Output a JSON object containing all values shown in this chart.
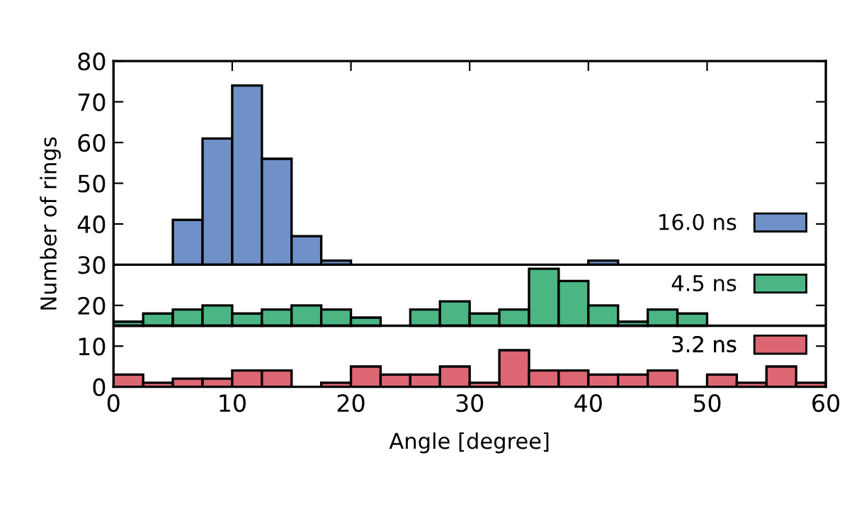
{
  "chart_data": {
    "type": "histogram",
    "xlabel": "Angle [degree]",
    "ylabel": "Number of rings",
    "bins": [
      0,
      2.5,
      5,
      7.5,
      10,
      12.5,
      15,
      17.5,
      20,
      22.5,
      25,
      27.5,
      30,
      32.5,
      35,
      37.5,
      40,
      42.5,
      45,
      47.5,
      50,
      52.5,
      55,
      57.5,
      60
    ],
    "series": [
      {
        "name": "16.0 ns",
        "color": "#6f91c7",
        "base": [
          null,
          null,
          30,
          30,
          30,
          30,
          30,
          30,
          null,
          null,
          null,
          null,
          null,
          null,
          null,
          null,
          30,
          null,
          null,
          null,
          null,
          null,
          null,
          null
        ],
        "values": [
          null,
          null,
          11,
          31,
          44,
          26,
          7,
          1,
          null,
          null,
          null,
          null,
          null,
          null,
          null,
          null,
          1,
          null,
          null,
          null,
          null,
          null,
          null,
          null
        ]
      },
      {
        "name": "4.5 ns",
        "color": "#4bb584",
        "base": [
          15,
          15,
          15,
          15,
          15,
          15,
          15,
          15,
          15,
          null,
          15,
          15,
          15,
          15,
          15,
          15,
          15,
          15,
          15,
          15,
          null,
          null,
          null,
          null
        ],
        "values": [
          1,
          3,
          4,
          5,
          3,
          4,
          5,
          4,
          2,
          null,
          4,
          6,
          3,
          4,
          14,
          11,
          5,
          1,
          4,
          3,
          null,
          null,
          null,
          null
        ]
      },
      {
        "name": "3.2 ns",
        "color": "#dd6673",
        "base": [
          0,
          0,
          0,
          0,
          0,
          0,
          null,
          0,
          0,
          0,
          0,
          0,
          0,
          0,
          0,
          0,
          0,
          0,
          0,
          null,
          0,
          0,
          0,
          0
        ],
        "values": [
          3,
          1,
          2,
          2,
          4,
          4,
          null,
          1,
          5,
          3,
          3,
          5,
          1,
          9,
          4,
          4,
          3,
          3,
          4,
          null,
          3,
          1,
          5,
          1
        ]
      }
    ],
    "ref_lines": [
      {
        "axis": "y",
        "value": 30,
        "color": "#000000"
      },
      {
        "axis": "y",
        "value": 15,
        "color": "#000000"
      }
    ],
    "xlim": [
      0,
      60
    ],
    "xticks": [
      0,
      10,
      20,
      30,
      40,
      50,
      60
    ],
    "ylim": [
      0,
      80
    ],
    "yticks": [
      0,
      10,
      20,
      30,
      40,
      50,
      60,
      70,
      80
    ],
    "legend": "right"
  }
}
